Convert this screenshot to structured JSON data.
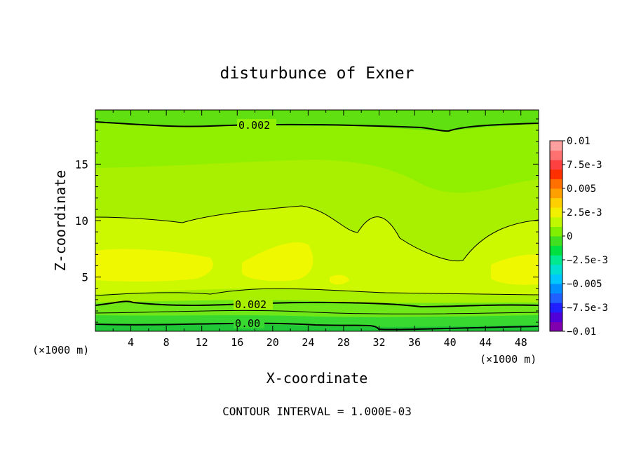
{
  "chart_data": {
    "type": "heatmap",
    "title": "disturbunce of Exner",
    "xlabel": "X-coordinate",
    "ylabel": "Z-coordinate",
    "x_unit_left": "(×1000 m)",
    "x_unit_right": "(×1000 m)",
    "footer": "CONTOUR INTERVAL = 1.000E-03",
    "xlim": [
      0,
      50
    ],
    "ylim": [
      0.2,
      19.8
    ],
    "xticks": [
      "4",
      "8",
      "12",
      "16",
      "20",
      "24",
      "28",
      "32",
      "36",
      "40",
      "44",
      "48"
    ],
    "yticks": [
      "5",
      "10",
      "15"
    ],
    "colorbar": {
      "range": [
        -0.01,
        0.01
      ],
      "labels": [
        "0.01",
        "7.5e-3",
        "0.005",
        "2.5e-3",
        "0",
        "−2.5e-3",
        "−0.005",
        "−7.5e-3",
        "−0.01"
      ],
      "colors": [
        "#8000b0",
        "#5000d8",
        "#2020ff",
        "#2060ff",
        "#0090ff",
        "#00c8ff",
        "#00e0d0",
        "#00e890",
        "#00e040",
        "#40e020",
        "#80f000",
        "#c0f800",
        "#f0f000",
        "#ffd000",
        "#ffa000",
        "#ff7000",
        "#ff3000",
        "#ff4040",
        "#ff7070",
        "#ffa0a0"
      ]
    },
    "field": {
      "x": [
        0,
        10,
        20,
        30,
        40,
        50
      ],
      "z": [
        0.5,
        2,
        4,
        6,
        10,
        15,
        19
      ],
      "values": [
        [
          0.0002,
          0.0003,
          0.0004,
          0.0001,
          0.0002,
          0.0003
        ],
        [
          0.0015,
          0.0015,
          0.0018,
          0.0016,
          0.0015,
          0.0016
        ],
        [
          0.0028,
          0.0029,
          0.003,
          0.0029,
          0.0028,
          0.0029
        ],
        [
          0.0034,
          0.0033,
          0.0035,
          0.003,
          0.0028,
          0.0034
        ],
        [
          0.003,
          0.003,
          0.0031,
          0.0031,
          0.0024,
          0.003
        ],
        [
          0.0023,
          0.0023,
          0.0025,
          0.0024,
          0.002,
          0.0023
        ],
        [
          0.0019,
          0.0019,
          0.002,
          0.002,
          0.0018,
          0.0019
        ]
      ]
    },
    "contour_labels": [
      "0.002",
      "0.002",
      "0.00"
    ]
  }
}
